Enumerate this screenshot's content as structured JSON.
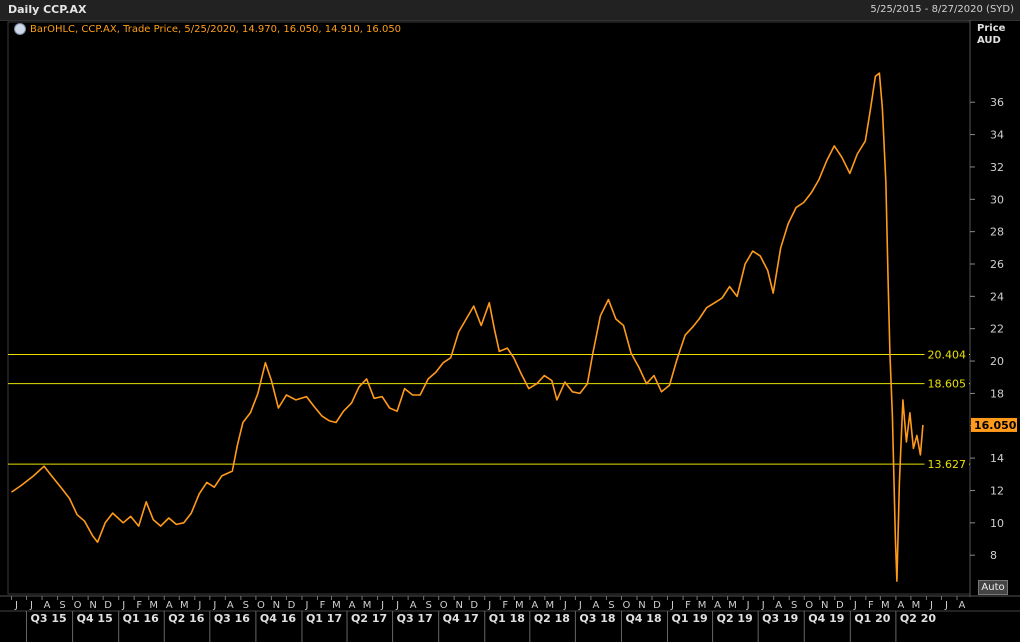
{
  "header": {
    "title": "Daily CCP.AX",
    "date_range": "5/25/2015 - 8/27/2020 (SYD)"
  },
  "legend": {
    "text": "BarOHLC, CCP.AX, Trade Price,  5/25/2020, 14.970, 16.050, 14.910, 16.050"
  },
  "y_axis": {
    "title_line1": "Price",
    "title_line2": "AUD",
    "auto_label": "Auto"
  },
  "colors": {
    "series": "#ff9a1a",
    "reference_line": "#e8e000",
    "last_price_bg": "#ff9a1a"
  },
  "chart_data": {
    "type": "line",
    "title": "Daily CCP.AX",
    "series": [
      {
        "name": "CCP.AX",
        "points": [
          [
            "2015-06-01",
            11.9
          ],
          [
            "2015-06-20",
            12.3
          ],
          [
            "2015-07-15",
            12.9
          ],
          [
            "2015-08-05",
            13.5
          ],
          [
            "2015-08-20",
            12.9
          ],
          [
            "2015-09-10",
            12.1
          ],
          [
            "2015-09-25",
            11.5
          ],
          [
            "2015-10-10",
            10.5
          ],
          [
            "2015-10-25",
            10.1
          ],
          [
            "2015-11-10",
            9.2
          ],
          [
            "2015-11-20",
            8.8
          ],
          [
            "2015-12-05",
            10.0
          ],
          [
            "2015-12-20",
            10.6
          ],
          [
            "2016-01-10",
            10.0
          ],
          [
            "2016-01-25",
            10.4
          ],
          [
            "2016-02-10",
            9.8
          ],
          [
            "2016-02-25",
            11.3
          ],
          [
            "2016-03-10",
            10.2
          ],
          [
            "2016-03-25",
            9.8
          ],
          [
            "2016-04-10",
            10.3
          ],
          [
            "2016-04-25",
            9.9
          ],
          [
            "2016-05-10",
            10.0
          ],
          [
            "2016-05-25",
            10.6
          ],
          [
            "2016-06-10",
            11.8
          ],
          [
            "2016-06-25",
            12.5
          ],
          [
            "2016-07-10",
            12.2
          ],
          [
            "2016-07-25",
            12.9
          ],
          [
            "2016-08-15",
            13.2
          ],
          [
            "2016-08-25",
            14.8
          ],
          [
            "2016-09-05",
            16.2
          ],
          [
            "2016-09-20",
            16.8
          ],
          [
            "2016-10-05",
            18.0
          ],
          [
            "2016-10-20",
            19.9
          ],
          [
            "2016-11-01",
            18.8
          ],
          [
            "2016-11-15",
            17.1
          ],
          [
            "2016-12-01",
            17.9
          ],
          [
            "2016-12-20",
            17.6
          ],
          [
            "2017-01-10",
            17.8
          ],
          [
            "2017-01-25",
            17.2
          ],
          [
            "2017-02-10",
            16.6
          ],
          [
            "2017-02-25",
            16.3
          ],
          [
            "2017-03-10",
            16.2
          ],
          [
            "2017-03-25",
            16.9
          ],
          [
            "2017-04-10",
            17.4
          ],
          [
            "2017-04-25",
            18.4
          ],
          [
            "2017-05-10",
            18.9
          ],
          [
            "2017-05-25",
            17.7
          ],
          [
            "2017-06-10",
            17.8
          ],
          [
            "2017-06-25",
            17.1
          ],
          [
            "2017-07-10",
            16.9
          ],
          [
            "2017-07-25",
            18.3
          ],
          [
            "2017-08-10",
            17.9
          ],
          [
            "2017-08-25",
            17.9
          ],
          [
            "2017-09-10",
            18.9
          ],
          [
            "2017-09-25",
            19.3
          ],
          [
            "2017-10-10",
            19.9
          ],
          [
            "2017-10-25",
            20.2
          ],
          [
            "2017-11-10",
            21.8
          ],
          [
            "2017-11-25",
            22.6
          ],
          [
            "2017-12-10",
            23.4
          ],
          [
            "2017-12-25",
            22.2
          ],
          [
            "2018-01-10",
            23.6
          ],
          [
            "2018-01-20",
            22.0
          ],
          [
            "2018-01-30",
            20.6
          ],
          [
            "2018-02-15",
            20.8
          ],
          [
            "2018-02-28",
            20.2
          ],
          [
            "2018-03-15",
            19.2
          ],
          [
            "2018-03-30",
            18.3
          ],
          [
            "2018-04-15",
            18.6
          ],
          [
            "2018-04-30",
            19.1
          ],
          [
            "2018-05-15",
            18.8
          ],
          [
            "2018-05-25",
            17.6
          ],
          [
            "2018-06-10",
            18.7
          ],
          [
            "2018-06-25",
            18.1
          ],
          [
            "2018-07-10",
            18.0
          ],
          [
            "2018-07-25",
            18.6
          ],
          [
            "2018-08-05",
            20.5
          ],
          [
            "2018-08-20",
            22.8
          ],
          [
            "2018-09-05",
            23.8
          ],
          [
            "2018-09-20",
            22.6
          ],
          [
            "2018-10-05",
            22.2
          ],
          [
            "2018-10-20",
            20.5
          ],
          [
            "2018-11-05",
            19.6
          ],
          [
            "2018-11-20",
            18.6
          ],
          [
            "2018-12-05",
            19.1
          ],
          [
            "2018-12-20",
            18.1
          ],
          [
            "2019-01-05",
            18.5
          ],
          [
            "2019-01-20",
            20.1
          ],
          [
            "2019-02-05",
            21.6
          ],
          [
            "2019-02-20",
            22.1
          ],
          [
            "2019-03-05",
            22.6
          ],
          [
            "2019-03-20",
            23.3
          ],
          [
            "2019-04-05",
            23.6
          ],
          [
            "2019-04-20",
            23.9
          ],
          [
            "2019-05-05",
            24.6
          ],
          [
            "2019-05-20",
            24.0
          ],
          [
            "2019-06-05",
            26.0
          ],
          [
            "2019-06-20",
            26.8
          ],
          [
            "2019-07-05",
            26.5
          ],
          [
            "2019-07-20",
            25.6
          ],
          [
            "2019-07-31",
            24.2
          ],
          [
            "2019-08-15",
            27.0
          ],
          [
            "2019-08-30",
            28.5
          ],
          [
            "2019-09-15",
            29.5
          ],
          [
            "2019-09-30",
            29.8
          ],
          [
            "2019-10-15",
            30.4
          ],
          [
            "2019-10-30",
            31.2
          ],
          [
            "2019-11-15",
            32.4
          ],
          [
            "2019-11-30",
            33.3
          ],
          [
            "2019-12-15",
            32.6
          ],
          [
            "2019-12-31",
            31.6
          ],
          [
            "2020-01-15",
            32.8
          ],
          [
            "2020-01-31",
            33.6
          ],
          [
            "2020-02-10",
            35.5
          ],
          [
            "2020-02-20",
            37.6
          ],
          [
            "2020-02-28",
            37.8
          ],
          [
            "2020-03-05",
            35.6
          ],
          [
            "2020-03-12",
            31.0
          ],
          [
            "2020-03-16",
            25.5
          ],
          [
            "2020-03-20",
            20.5
          ],
          [
            "2020-03-25",
            16.6
          ],
          [
            "2020-03-31",
            9.0
          ],
          [
            "2020-04-03",
            6.4
          ],
          [
            "2020-04-08",
            12.5
          ],
          [
            "2020-04-15",
            17.6
          ],
          [
            "2020-04-22",
            15.0
          ],
          [
            "2020-04-29",
            16.8
          ],
          [
            "2020-05-06",
            14.6
          ],
          [
            "2020-05-13",
            15.4
          ],
          [
            "2020-05-20",
            14.2
          ],
          [
            "2020-05-25",
            16.05
          ]
        ]
      }
    ],
    "x_range": [
      "2015-05-25",
      "2020-08-27"
    ],
    "ylim": [
      5.6,
      39.6
    ],
    "y_ticks": [
      8,
      10,
      12,
      14,
      16,
      18,
      20,
      22,
      24,
      26,
      28,
      30,
      32,
      34,
      36
    ],
    "horizontal_lines": [
      20.404,
      18.605,
      13.627
    ],
    "horizontal_line_labels": [
      "20.404",
      "18.605",
      "13.627"
    ],
    "last_price": 16.05,
    "last_price_label": "16.050",
    "x_month_labels": [
      "J",
      "J",
      "A",
      "S",
      "O",
      "N",
      "D",
      "J",
      "F",
      "M",
      "A",
      "M",
      "J",
      "J",
      "A",
      "S",
      "O",
      "N",
      "D",
      "J",
      "F",
      "M",
      "A",
      "M",
      "J",
      "J",
      "A",
      "S",
      "O",
      "N",
      "D",
      "J",
      "F",
      "M",
      "A",
      "M",
      "J",
      "J",
      "A",
      "S",
      "O",
      "N",
      "D",
      "J",
      "F",
      "M",
      "A",
      "M",
      "J",
      "J",
      "A",
      "S",
      "O",
      "N",
      "D",
      "J",
      "F",
      "M",
      "A",
      "M",
      "J",
      "J",
      "A"
    ],
    "x_quarter_labels": [
      "Q3 15",
      "Q4 15",
      "Q1 16",
      "Q2 16",
      "Q3 16",
      "Q4 16",
      "Q1 17",
      "Q2 17",
      "Q3 17",
      "Q4 17",
      "Q1 18",
      "Q2 18",
      "Q3 18",
      "Q4 18",
      "Q1 19",
      "Q2 19",
      "Q3 19",
      "Q4 19",
      "Q1 20",
      "Q2 20"
    ]
  }
}
